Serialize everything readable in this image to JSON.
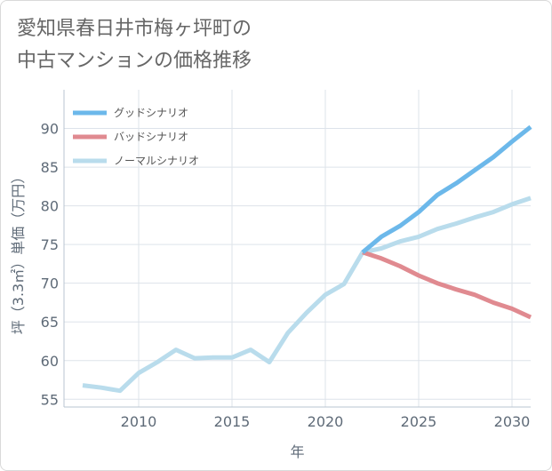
{
  "title": {
    "line1": "愛知県春日井市梅ヶ坪町の",
    "line2": "中古マンションの価格推移"
  },
  "chart_data": {
    "type": "line",
    "title": "愛知県春日井市梅ヶ坪町の中古マンションの価格推移",
    "xlabel": "年",
    "ylabel": "坪（3.3㎡）単価（万円）",
    "xlim": [
      2006,
      2031
    ],
    "ylim": [
      54,
      95
    ],
    "x_ticks": [
      2010,
      2015,
      2020,
      2025,
      2030
    ],
    "y_ticks": [
      55,
      60,
      65,
      70,
      75,
      80,
      85,
      90
    ],
    "grid": true,
    "legend_position": "top-left",
    "series": [
      {
        "name": "グッドシナリオ",
        "color": "#6cb8ea",
        "x": [
          2022,
          2023,
          2024,
          2025,
          2026,
          2027,
          2028,
          2029,
          2030,
          2031
        ],
        "y": [
          74.0,
          76.0,
          77.4,
          79.2,
          81.4,
          82.9,
          84.6,
          86.3,
          88.3,
          90.2
        ]
      },
      {
        "name": "バッドシナリオ",
        "color": "#e08a90",
        "x": [
          2022,
          2023,
          2024,
          2025,
          2026,
          2027,
          2028,
          2029,
          2030,
          2031
        ],
        "y": [
          74.0,
          73.2,
          72.2,
          71.0,
          70.0,
          69.2,
          68.5,
          67.5,
          66.7,
          65.6
        ]
      },
      {
        "name": "ノーマルシナリオ",
        "color": "#b9dcec",
        "x": [
          2007,
          2008,
          2009,
          2010,
          2011,
          2012,
          2013,
          2014,
          2015,
          2016,
          2017,
          2018,
          2019,
          2020,
          2021,
          2022,
          2023,
          2024,
          2025,
          2026,
          2027,
          2028,
          2029,
          2030,
          2031
        ],
        "y": [
          56.8,
          56.5,
          56.1,
          58.4,
          59.8,
          61.4,
          60.3,
          60.4,
          60.4,
          61.4,
          59.8,
          63.6,
          66.2,
          68.5,
          69.9,
          74.0,
          74.5,
          75.4,
          76.0,
          77.0,
          77.7,
          78.5,
          79.2,
          80.2,
          81.0
        ]
      }
    ]
  }
}
